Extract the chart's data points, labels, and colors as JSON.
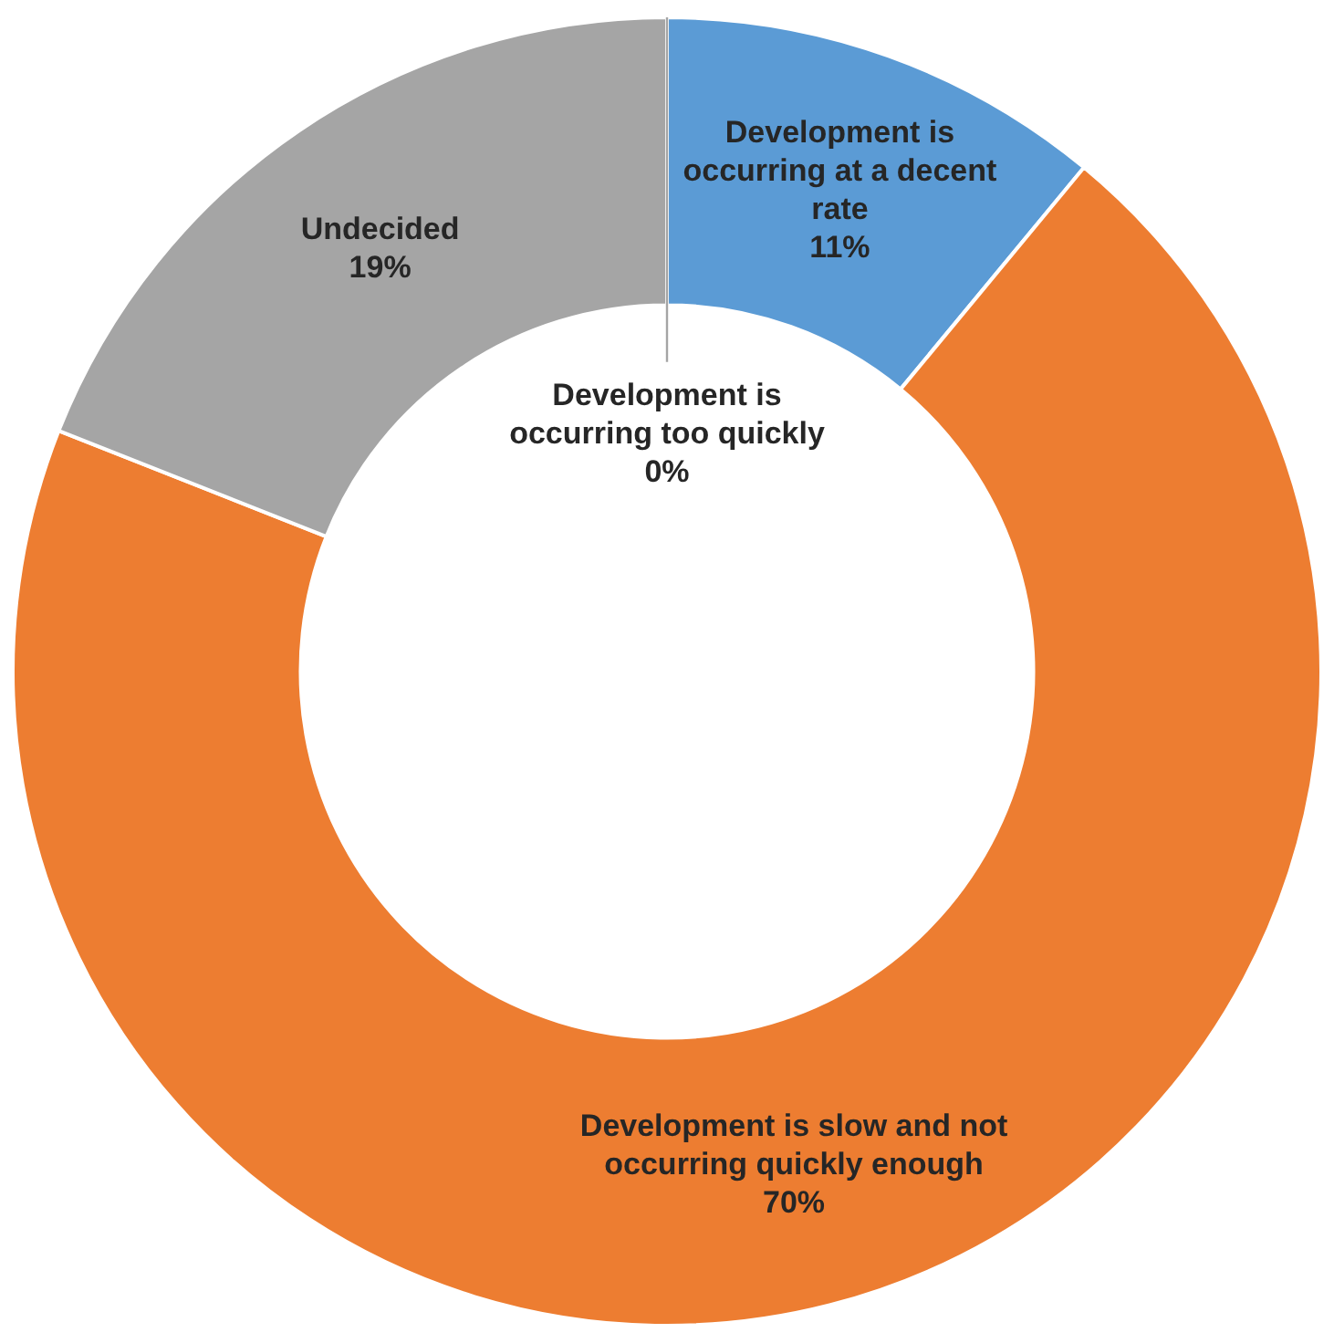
{
  "chart_data": {
    "type": "donut",
    "categories": [
      "Development is occurring too quickly",
      "Development is occurring at a decent rate",
      "Development is slow and not occurring quickly enough",
      "Undecided"
    ],
    "values": [
      0,
      11,
      70,
      19
    ],
    "value_labels": [
      "0%",
      "11%",
      "70%",
      "19%"
    ],
    "colors": [
      "#ffc000",
      "#5b9bd5",
      "#ed7d31",
      "#a5a5a5"
    ],
    "legend": false
  }
}
